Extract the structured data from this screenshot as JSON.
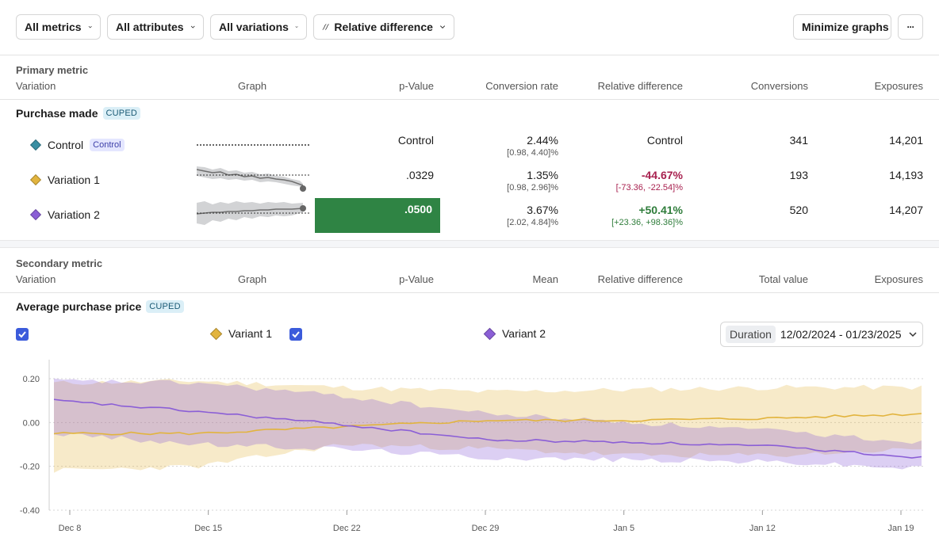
{
  "toolbar": {
    "metrics_label": "All metrics",
    "attributes_label": "All attributes",
    "variations_label": "All variations",
    "difference_label": "Relative difference",
    "minimize_label": "Minimize graphs",
    "more_label": "···"
  },
  "primary": {
    "section_title": "Primary metric",
    "headers": {
      "variation": "Variation",
      "graph": "Graph",
      "pvalue": "p-Value",
      "rate": "Conversion rate",
      "reldiff": "Relative difference",
      "conversions": "Conversions",
      "exposures": "Exposures"
    },
    "metric_name": "Purchase made",
    "metric_badge": "CUPED",
    "control_badge": "Control",
    "rows": [
      {
        "name": "Control",
        "color": "#3a8fa3",
        "pvalue": "Control",
        "rate": "2.44%",
        "rate_ci": "[0.98, 4.40]%",
        "reldiff": "Control",
        "reldiff_ci": "",
        "conversions": "341",
        "exposures": "14,201"
      },
      {
        "name": "Variation 1",
        "color": "#e2b43e",
        "pvalue": ".0329",
        "rate": "1.35%",
        "rate_ci": "[0.98, 2.96]%",
        "reldiff": "-44.67%",
        "reldiff_ci": "[-73.36, -22.54]%",
        "conversions": "193",
        "exposures": "14,193"
      },
      {
        "name": "Variation 2",
        "color": "#8b5fd6",
        "pvalue": ".0500",
        "rate": "3.67%",
        "rate_ci": "[2.02, 4.84]%",
        "reldiff": "+50.41%",
        "reldiff_ci": "[+23.36, +98.36]%",
        "conversions": "520",
        "exposures": "14,207"
      }
    ],
    "significant_color": "#2f8444"
  },
  "secondary": {
    "section_title": "Secondary metric",
    "headers": {
      "variation": "Variation",
      "graph": "Graph",
      "pvalue": "p-Value",
      "mean": "Mean",
      "reldiff": "Relative difference",
      "total": "Total value",
      "exposures": "Exposures"
    },
    "metric_name": "Average purchase price",
    "metric_badge": "CUPED",
    "legend": [
      {
        "name": "Variant 1",
        "color": "#e2b43e",
        "checked": true
      },
      {
        "name": "Variant 2",
        "color": "#8b5fd6",
        "checked": true
      }
    ],
    "duration_label": "Duration",
    "duration_value": "12/02/2024 - 01/23/2025"
  },
  "chart_data": {
    "type": "line",
    "x": [
      "Dec 8",
      "Dec 15",
      "Dec 22",
      "Dec 29",
      "Jan 5",
      "Jan 12",
      "Jan 19"
    ],
    "ylim": [
      -0.4,
      0.2
    ],
    "yticks": [
      "0.20",
      "0.00",
      "-0.20",
      "-0.40"
    ],
    "series": [
      {
        "name": "Variant 1",
        "color": "#e2b43e",
        "values": [
          -0.05,
          -0.05,
          -0.02,
          0.01,
          0.01,
          0.02,
          0.04
        ],
        "lower": [
          -0.22,
          -0.2,
          -0.1,
          -0.12,
          -0.15,
          -0.15,
          -0.12
        ],
        "upper": [
          0.18,
          0.19,
          0.16,
          0.14,
          0.15,
          0.16,
          0.16
        ]
      },
      {
        "name": "Variant 2",
        "color": "#8b5fd6",
        "values": [
          0.1,
          0.05,
          -0.01,
          -0.08,
          -0.09,
          -0.11,
          -0.16
        ],
        "lower": [
          -0.05,
          -0.1,
          -0.12,
          -0.16,
          -0.17,
          -0.18,
          -0.21
        ],
        "upper": [
          0.19,
          0.18,
          0.12,
          0.04,
          0.0,
          -0.04,
          -0.09
        ]
      }
    ],
    "grid": true
  }
}
